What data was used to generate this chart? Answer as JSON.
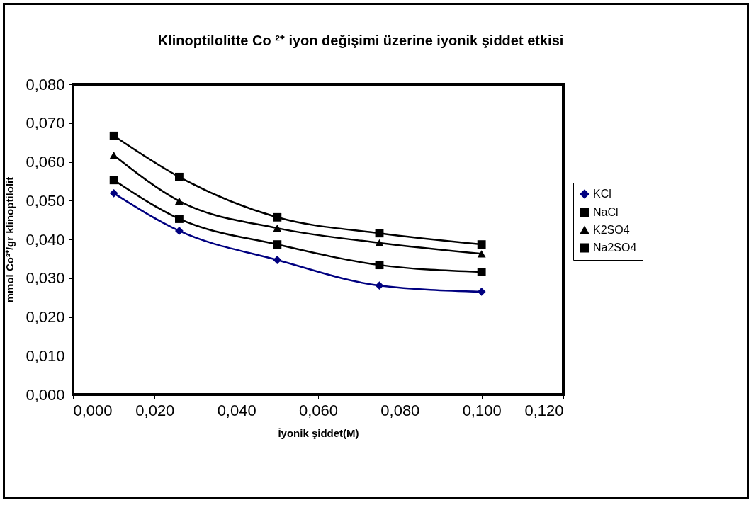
{
  "chart_data": {
    "type": "line",
    "title": "Klinoptilolitte Co ²⁺ iyon değişimi üzerine iyonik şiddet etkisi",
    "xlabel": "İyonik şiddet(M)",
    "ylabel": "mmol Co²⁺/gr klinoptilolit",
    "x": [
      0.01,
      0.026,
      0.05,
      0.075,
      0.1
    ],
    "series": [
      {
        "name": "KCl",
        "color": "#000080",
        "marker": "diamond",
        "values": [
          0.0519,
          0.0422,
          0.0347,
          0.0281,
          0.0265
        ]
      },
      {
        "name": "NaCl",
        "color": "#000000",
        "marker": "square",
        "values": [
          0.0553,
          0.0453,
          0.0387,
          0.0334,
          0.0316
        ]
      },
      {
        "name": "K2SO4",
        "color": "#000000",
        "marker": "triangle",
        "values": [
          0.0617,
          0.0499,
          0.0429,
          0.0391,
          0.0363
        ]
      },
      {
        "name": "Na2SO4",
        "color": "#000000",
        "marker": "square",
        "values": [
          0.0667,
          0.0561,
          0.0457,
          0.0416,
          0.0387
        ]
      }
    ],
    "xlim": [
      0,
      0.12
    ],
    "xticks": [
      {
        "value": 0,
        "label": "0,000"
      },
      {
        "value": 0.02,
        "label": "0,020"
      },
      {
        "value": 0.04,
        "label": "0,040"
      },
      {
        "value": 0.06,
        "label": "0,060"
      },
      {
        "value": 0.08,
        "label": "0,080"
      },
      {
        "value": 0.1,
        "label": "0,100"
      },
      {
        "value": 0.12,
        "label": "0,120"
      }
    ],
    "ylim": [
      0,
      0.08
    ],
    "yticks": [
      {
        "value": 0,
        "label": "0,000"
      },
      {
        "value": 0.01,
        "label": "0,010"
      },
      {
        "value": 0.02,
        "label": "0,020"
      },
      {
        "value": 0.03,
        "label": "0,030"
      },
      {
        "value": 0.04,
        "label": "0,040"
      },
      {
        "value": 0.05,
        "label": "0,050"
      },
      {
        "value": 0.06,
        "label": "0,060"
      },
      {
        "value": 0.07,
        "label": "0,070"
      },
      {
        "value": 0.08,
        "label": "0,080"
      }
    ],
    "grid": false,
    "legend": "right",
    "line_style": "solid"
  }
}
